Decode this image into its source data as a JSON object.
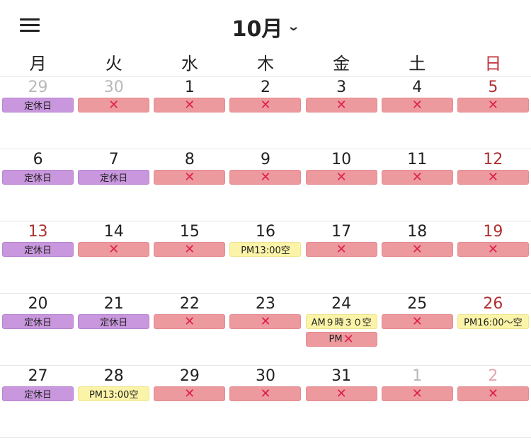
{
  "header": {
    "month": "10月",
    "chevron": "⌄"
  },
  "weekdays": [
    "月",
    "火",
    "水",
    "木",
    "金",
    "土",
    "日"
  ],
  "weeks": [
    [
      {
        "date": "29",
        "other": true,
        "badges": [
          {
            "type": "closed",
            "label": "定休日"
          }
        ]
      },
      {
        "date": "30",
        "other": true,
        "badges": [
          {
            "type": "full",
            "label": "✕"
          }
        ]
      },
      {
        "date": "1",
        "badges": [
          {
            "type": "full",
            "label": "✕"
          }
        ]
      },
      {
        "date": "2",
        "badges": [
          {
            "type": "full",
            "label": "✕"
          }
        ]
      },
      {
        "date": "3",
        "badges": [
          {
            "type": "full",
            "label": "✕"
          }
        ]
      },
      {
        "date": "4",
        "badges": [
          {
            "type": "full",
            "label": "✕"
          }
        ]
      },
      {
        "date": "5",
        "badges": [
          {
            "type": "full",
            "label": "✕"
          }
        ]
      }
    ],
    [
      {
        "date": "6",
        "badges": [
          {
            "type": "closed",
            "label": "定休日"
          }
        ]
      },
      {
        "date": "7",
        "badges": [
          {
            "type": "closed",
            "label": "定休日"
          }
        ]
      },
      {
        "date": "8",
        "badges": [
          {
            "type": "full",
            "label": "✕"
          }
        ]
      },
      {
        "date": "9",
        "badges": [
          {
            "type": "full",
            "label": "✕"
          }
        ]
      },
      {
        "date": "10",
        "badges": [
          {
            "type": "full",
            "label": "✕"
          }
        ]
      },
      {
        "date": "11",
        "badges": [
          {
            "type": "full",
            "label": "✕"
          }
        ]
      },
      {
        "date": "12",
        "badges": [
          {
            "type": "full",
            "label": "✕"
          }
        ]
      }
    ],
    [
      {
        "date": "13",
        "red": true,
        "badges": [
          {
            "type": "closed",
            "label": "定休日"
          }
        ]
      },
      {
        "date": "14",
        "badges": [
          {
            "type": "full",
            "label": "✕"
          }
        ]
      },
      {
        "date": "15",
        "badges": [
          {
            "type": "full",
            "label": "✕"
          }
        ]
      },
      {
        "date": "16",
        "badges": [
          {
            "type": "avail",
            "label": "PM13:00空"
          }
        ]
      },
      {
        "date": "17",
        "badges": [
          {
            "type": "full",
            "label": "✕"
          }
        ]
      },
      {
        "date": "18",
        "badges": [
          {
            "type": "full",
            "label": "✕"
          }
        ]
      },
      {
        "date": "19",
        "badges": [
          {
            "type": "full",
            "label": "✕"
          }
        ]
      }
    ],
    [
      {
        "date": "20",
        "badges": [
          {
            "type": "closed",
            "label": "定休日"
          }
        ]
      },
      {
        "date": "21",
        "badges": [
          {
            "type": "closed",
            "label": "定休日"
          }
        ]
      },
      {
        "date": "22",
        "badges": [
          {
            "type": "full",
            "label": "✕"
          }
        ]
      },
      {
        "date": "23",
        "badges": [
          {
            "type": "full",
            "label": "✕"
          }
        ]
      },
      {
        "date": "24",
        "badges": [
          {
            "type": "avail",
            "label": "AM９時３０空"
          },
          {
            "type": "mix",
            "label": "PM",
            "x": "✕"
          }
        ]
      },
      {
        "date": "25",
        "badges": [
          {
            "type": "full",
            "label": "✕"
          }
        ]
      },
      {
        "date": "26",
        "badges": [
          {
            "type": "avail",
            "label": "PM16:00〜空"
          }
        ]
      }
    ],
    [
      {
        "date": "27",
        "badges": [
          {
            "type": "closed",
            "label": "定休日"
          }
        ]
      },
      {
        "date": "28",
        "badges": [
          {
            "type": "avail",
            "label": "PM13:00空"
          }
        ]
      },
      {
        "date": "29",
        "badges": [
          {
            "type": "full",
            "label": "✕"
          }
        ]
      },
      {
        "date": "30",
        "badges": [
          {
            "type": "full",
            "label": "✕"
          }
        ]
      },
      {
        "date": "31",
        "badges": [
          {
            "type": "full",
            "label": "✕"
          }
        ]
      },
      {
        "date": "1",
        "other": true,
        "badges": [
          {
            "type": "full",
            "label": "✕"
          }
        ]
      },
      {
        "date": "2",
        "other": true,
        "badges": [
          {
            "type": "full",
            "label": "✕"
          }
        ]
      }
    ]
  ]
}
